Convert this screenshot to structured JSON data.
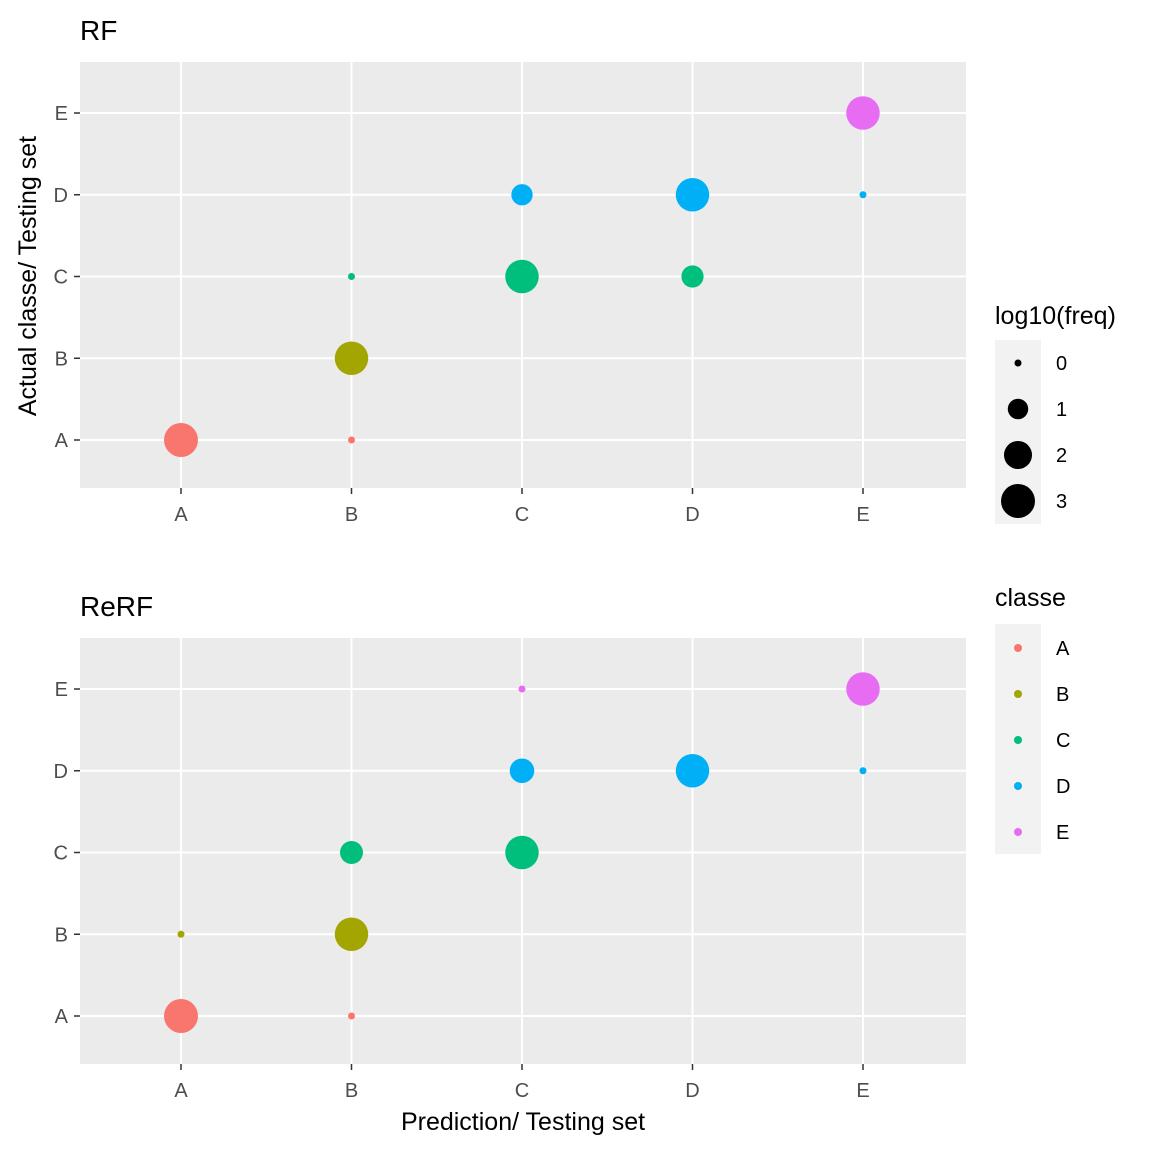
{
  "chart_data": {
    "type": "scatter",
    "xlabel": "Prediction/ Testing set",
    "ylabel": "Actual classe/ Testing set",
    "categories": [
      "A",
      "B",
      "C",
      "D",
      "E"
    ],
    "class_colors": {
      "A": "#F8766D",
      "B": "#A3A500",
      "C": "#00BF7D",
      "D": "#00B0F6",
      "E": "#E76BF3"
    },
    "size_legend": {
      "title": "log10(freq)",
      "values": [
        0,
        1,
        2,
        3
      ],
      "labels": [
        "0",
        "1",
        "2",
        "3"
      ]
    },
    "color_legend": {
      "title": "classe",
      "labels": [
        "A",
        "B",
        "C",
        "D",
        "E"
      ]
    },
    "panels": [
      {
        "title": "RF",
        "points": [
          {
            "x": "A",
            "y": "A",
            "log10_freq": 3.0,
            "classe": "A"
          },
          {
            "x": "B",
            "y": "A",
            "log10_freq": 0,
            "classe": "A"
          },
          {
            "x": "B",
            "y": "B",
            "log10_freq": 2.9,
            "classe": "B"
          },
          {
            "x": "B",
            "y": "C",
            "log10_freq": 0,
            "classe": "C"
          },
          {
            "x": "C",
            "y": "C",
            "log10_freq": 2.9,
            "classe": "C"
          },
          {
            "x": "D",
            "y": "C",
            "log10_freq": 1.2,
            "classe": "C"
          },
          {
            "x": "C",
            "y": "D",
            "log10_freq": 1.1,
            "classe": "D"
          },
          {
            "x": "D",
            "y": "D",
            "log10_freq": 2.9,
            "classe": "D"
          },
          {
            "x": "E",
            "y": "D",
            "log10_freq": 0,
            "classe": "D"
          },
          {
            "x": "E",
            "y": "E",
            "log10_freq": 2.9,
            "classe": "E"
          }
        ]
      },
      {
        "title": "ReRF",
        "points": [
          {
            "x": "A",
            "y": "A",
            "log10_freq": 3.0,
            "classe": "A"
          },
          {
            "x": "B",
            "y": "A",
            "log10_freq": 0,
            "classe": "A"
          },
          {
            "x": "A",
            "y": "B",
            "log10_freq": 0,
            "classe": "B"
          },
          {
            "x": "B",
            "y": "B",
            "log10_freq": 2.9,
            "classe": "B"
          },
          {
            "x": "B",
            "y": "C",
            "log10_freq": 1.3,
            "classe": "C"
          },
          {
            "x": "C",
            "y": "C",
            "log10_freq": 2.9,
            "classe": "C"
          },
          {
            "x": "C",
            "y": "D",
            "log10_freq": 1.5,
            "classe": "D"
          },
          {
            "x": "D",
            "y": "D",
            "log10_freq": 2.9,
            "classe": "D"
          },
          {
            "x": "E",
            "y": "D",
            "log10_freq": 0,
            "classe": "D"
          },
          {
            "x": "C",
            "y": "E",
            "log10_freq": 0,
            "classe": "E"
          },
          {
            "x": "E",
            "y": "E",
            "log10_freq": 2.9,
            "classe": "E"
          }
        ]
      }
    ]
  }
}
